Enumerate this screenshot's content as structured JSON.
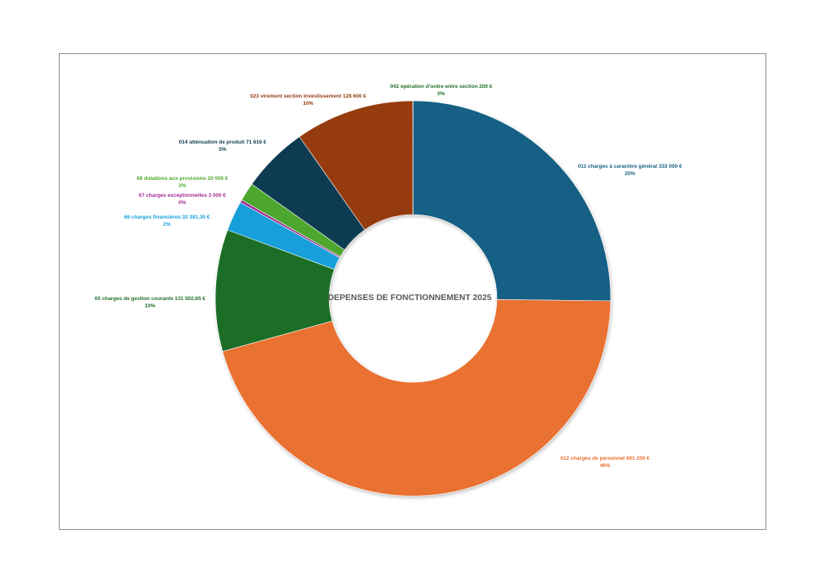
{
  "chart_data": {
    "type": "pie",
    "title": "DEPENSES DE FONCTIONNEMENT 2025",
    "slices": [
      {
        "name": "011 charges à caractère général",
        "amount": "333 000 €",
        "value": 333000,
        "percent": "25%",
        "color": "#176085"
      },
      {
        "name": "012 charges de personnel",
        "amount": "601 200 €",
        "value": 601200,
        "percent": "46%",
        "color": "#e97132"
      },
      {
        "name": "65 charges de gestion courante",
        "amount": "131 502,65 €",
        "value": 131502.65,
        "percent": "10%",
        "color": "#1e6e27"
      },
      {
        "name": "66 charges financières",
        "amount": "32 381,35 €",
        "value": 32381.35,
        "percent": "2%",
        "color": "#169fd8"
      },
      {
        "name": "67 charges exceptionnelles",
        "amount": "3 000 €",
        "value": 3000,
        "percent": "0%",
        "color": "#a02b93"
      },
      {
        "name": "68 dotations aux provisions",
        "amount": "20 000 €",
        "value": 20000,
        "percent": "2%",
        "color": "#4ea72e"
      },
      {
        "name": "014 atténuation de produit",
        "amount": "71 816 €",
        "value": 71816,
        "percent": "5%",
        "color": "#0e3a51"
      },
      {
        "name": "023 virement section investissement",
        "amount": "128 600 €",
        "value": 128600,
        "percent": "10%",
        "color": "#963a10"
      },
      {
        "name": "042 opération d'ordre entre section",
        "amount": "200 €",
        "value": 200,
        "percent": "0%",
        "color": "#1e6e27"
      }
    ],
    "hole": "donut",
    "legend": "none"
  }
}
